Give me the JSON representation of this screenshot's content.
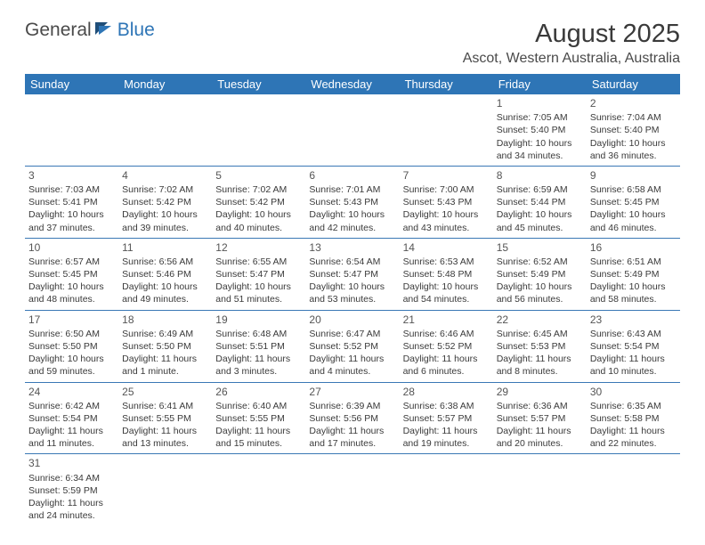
{
  "logo": {
    "part1": "General",
    "part2": "Blue"
  },
  "title": "August 2025",
  "location": "Ascot, Western Australia, Australia",
  "table": {
    "header_bg": "#2e75b6",
    "header_text_color": "#ffffff",
    "divider_color": "#3a78b5",
    "text_color": "#3a3a3a",
    "columns": [
      "Sunday",
      "Monday",
      "Tuesday",
      "Wednesday",
      "Thursday",
      "Friday",
      "Saturday"
    ]
  },
  "weeks": [
    [
      null,
      null,
      null,
      null,
      null,
      {
        "n": "1",
        "sr": "Sunrise: 7:05 AM",
        "ss": "Sunset: 5:40 PM",
        "dl1": "Daylight: 10 hours",
        "dl2": "and 34 minutes."
      },
      {
        "n": "2",
        "sr": "Sunrise: 7:04 AM",
        "ss": "Sunset: 5:40 PM",
        "dl1": "Daylight: 10 hours",
        "dl2": "and 36 minutes."
      }
    ],
    [
      {
        "n": "3",
        "sr": "Sunrise: 7:03 AM",
        "ss": "Sunset: 5:41 PM",
        "dl1": "Daylight: 10 hours",
        "dl2": "and 37 minutes."
      },
      {
        "n": "4",
        "sr": "Sunrise: 7:02 AM",
        "ss": "Sunset: 5:42 PM",
        "dl1": "Daylight: 10 hours",
        "dl2": "and 39 minutes."
      },
      {
        "n": "5",
        "sr": "Sunrise: 7:02 AM",
        "ss": "Sunset: 5:42 PM",
        "dl1": "Daylight: 10 hours",
        "dl2": "and 40 minutes."
      },
      {
        "n": "6",
        "sr": "Sunrise: 7:01 AM",
        "ss": "Sunset: 5:43 PM",
        "dl1": "Daylight: 10 hours",
        "dl2": "and 42 minutes."
      },
      {
        "n": "7",
        "sr": "Sunrise: 7:00 AM",
        "ss": "Sunset: 5:43 PM",
        "dl1": "Daylight: 10 hours",
        "dl2": "and 43 minutes."
      },
      {
        "n": "8",
        "sr": "Sunrise: 6:59 AM",
        "ss": "Sunset: 5:44 PM",
        "dl1": "Daylight: 10 hours",
        "dl2": "and 45 minutes."
      },
      {
        "n": "9",
        "sr": "Sunrise: 6:58 AM",
        "ss": "Sunset: 5:45 PM",
        "dl1": "Daylight: 10 hours",
        "dl2": "and 46 minutes."
      }
    ],
    [
      {
        "n": "10",
        "sr": "Sunrise: 6:57 AM",
        "ss": "Sunset: 5:45 PM",
        "dl1": "Daylight: 10 hours",
        "dl2": "and 48 minutes."
      },
      {
        "n": "11",
        "sr": "Sunrise: 6:56 AM",
        "ss": "Sunset: 5:46 PM",
        "dl1": "Daylight: 10 hours",
        "dl2": "and 49 minutes."
      },
      {
        "n": "12",
        "sr": "Sunrise: 6:55 AM",
        "ss": "Sunset: 5:47 PM",
        "dl1": "Daylight: 10 hours",
        "dl2": "and 51 minutes."
      },
      {
        "n": "13",
        "sr": "Sunrise: 6:54 AM",
        "ss": "Sunset: 5:47 PM",
        "dl1": "Daylight: 10 hours",
        "dl2": "and 53 minutes."
      },
      {
        "n": "14",
        "sr": "Sunrise: 6:53 AM",
        "ss": "Sunset: 5:48 PM",
        "dl1": "Daylight: 10 hours",
        "dl2": "and 54 minutes."
      },
      {
        "n": "15",
        "sr": "Sunrise: 6:52 AM",
        "ss": "Sunset: 5:49 PM",
        "dl1": "Daylight: 10 hours",
        "dl2": "and 56 minutes."
      },
      {
        "n": "16",
        "sr": "Sunrise: 6:51 AM",
        "ss": "Sunset: 5:49 PM",
        "dl1": "Daylight: 10 hours",
        "dl2": "and 58 minutes."
      }
    ],
    [
      {
        "n": "17",
        "sr": "Sunrise: 6:50 AM",
        "ss": "Sunset: 5:50 PM",
        "dl1": "Daylight: 10 hours",
        "dl2": "and 59 minutes."
      },
      {
        "n": "18",
        "sr": "Sunrise: 6:49 AM",
        "ss": "Sunset: 5:50 PM",
        "dl1": "Daylight: 11 hours",
        "dl2": "and 1 minute."
      },
      {
        "n": "19",
        "sr": "Sunrise: 6:48 AM",
        "ss": "Sunset: 5:51 PM",
        "dl1": "Daylight: 11 hours",
        "dl2": "and 3 minutes."
      },
      {
        "n": "20",
        "sr": "Sunrise: 6:47 AM",
        "ss": "Sunset: 5:52 PM",
        "dl1": "Daylight: 11 hours",
        "dl2": "and 4 minutes."
      },
      {
        "n": "21",
        "sr": "Sunrise: 6:46 AM",
        "ss": "Sunset: 5:52 PM",
        "dl1": "Daylight: 11 hours",
        "dl2": "and 6 minutes."
      },
      {
        "n": "22",
        "sr": "Sunrise: 6:45 AM",
        "ss": "Sunset: 5:53 PM",
        "dl1": "Daylight: 11 hours",
        "dl2": "and 8 minutes."
      },
      {
        "n": "23",
        "sr": "Sunrise: 6:43 AM",
        "ss": "Sunset: 5:54 PM",
        "dl1": "Daylight: 11 hours",
        "dl2": "and 10 minutes."
      }
    ],
    [
      {
        "n": "24",
        "sr": "Sunrise: 6:42 AM",
        "ss": "Sunset: 5:54 PM",
        "dl1": "Daylight: 11 hours",
        "dl2": "and 11 minutes."
      },
      {
        "n": "25",
        "sr": "Sunrise: 6:41 AM",
        "ss": "Sunset: 5:55 PM",
        "dl1": "Daylight: 11 hours",
        "dl2": "and 13 minutes."
      },
      {
        "n": "26",
        "sr": "Sunrise: 6:40 AM",
        "ss": "Sunset: 5:55 PM",
        "dl1": "Daylight: 11 hours",
        "dl2": "and 15 minutes."
      },
      {
        "n": "27",
        "sr": "Sunrise: 6:39 AM",
        "ss": "Sunset: 5:56 PM",
        "dl1": "Daylight: 11 hours",
        "dl2": "and 17 minutes."
      },
      {
        "n": "28",
        "sr": "Sunrise: 6:38 AM",
        "ss": "Sunset: 5:57 PM",
        "dl1": "Daylight: 11 hours",
        "dl2": "and 19 minutes."
      },
      {
        "n": "29",
        "sr": "Sunrise: 6:36 AM",
        "ss": "Sunset: 5:57 PM",
        "dl1": "Daylight: 11 hours",
        "dl2": "and 20 minutes."
      },
      {
        "n": "30",
        "sr": "Sunrise: 6:35 AM",
        "ss": "Sunset: 5:58 PM",
        "dl1": "Daylight: 11 hours",
        "dl2": "and 22 minutes."
      }
    ],
    [
      {
        "n": "31",
        "sr": "Sunrise: 6:34 AM",
        "ss": "Sunset: 5:59 PM",
        "dl1": "Daylight: 11 hours",
        "dl2": "and 24 minutes."
      },
      null,
      null,
      null,
      null,
      null,
      null
    ]
  ]
}
